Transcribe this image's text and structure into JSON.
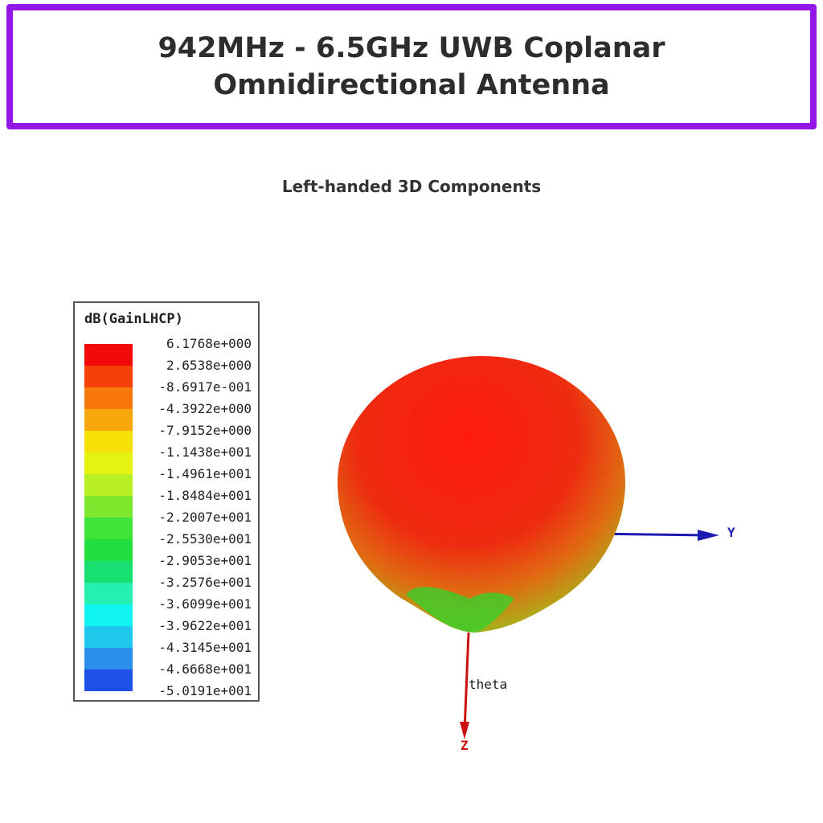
{
  "banner": {
    "title": "942MHz - 6.5GHz UWB Coplanar Omnidirectional Antenna",
    "border_color": "#9317e6"
  },
  "subtitle": "Left-handed 3D Components",
  "chart_data": {
    "type": "heatmap",
    "legend_title": "dB(GainLHCP)",
    "legend_placement": "left",
    "colorbar_ticks": [
      "6.1768e+000",
      "2.6538e+000",
      "-8.6917e-001",
      "-4.3922e+000",
      "-7.9152e+000",
      "-1.1438e+001",
      "-1.4961e+001",
      "-1.8484e+001",
      "-2.2007e+001",
      "-2.5530e+001",
      "-2.9053e+001",
      "-3.2576e+001",
      "-3.6099e+001",
      "-3.9622e+001",
      "-4.3145e+001",
      "-4.6668e+001",
      "-5.0191e+001"
    ],
    "colorbar_colors": [
      "#f00a0a",
      "#f6400a",
      "#f6780a",
      "#f7a80c",
      "#f5e007",
      "#e4f410",
      "#b8ef22",
      "#7fe62e",
      "#3ee43a",
      "#20e040",
      "#18e070",
      "#25f0b0",
      "#10f5f0",
      "#20c8ec",
      "#2a8fe8",
      "#1e50e8",
      "#1010e0"
    ],
    "axes": {
      "y_label": "Y",
      "z_label": "Z",
      "theta_label": "theta"
    },
    "axis_colors": {
      "y": "#1a1ab0",
      "z": "#cc1111"
    }
  }
}
